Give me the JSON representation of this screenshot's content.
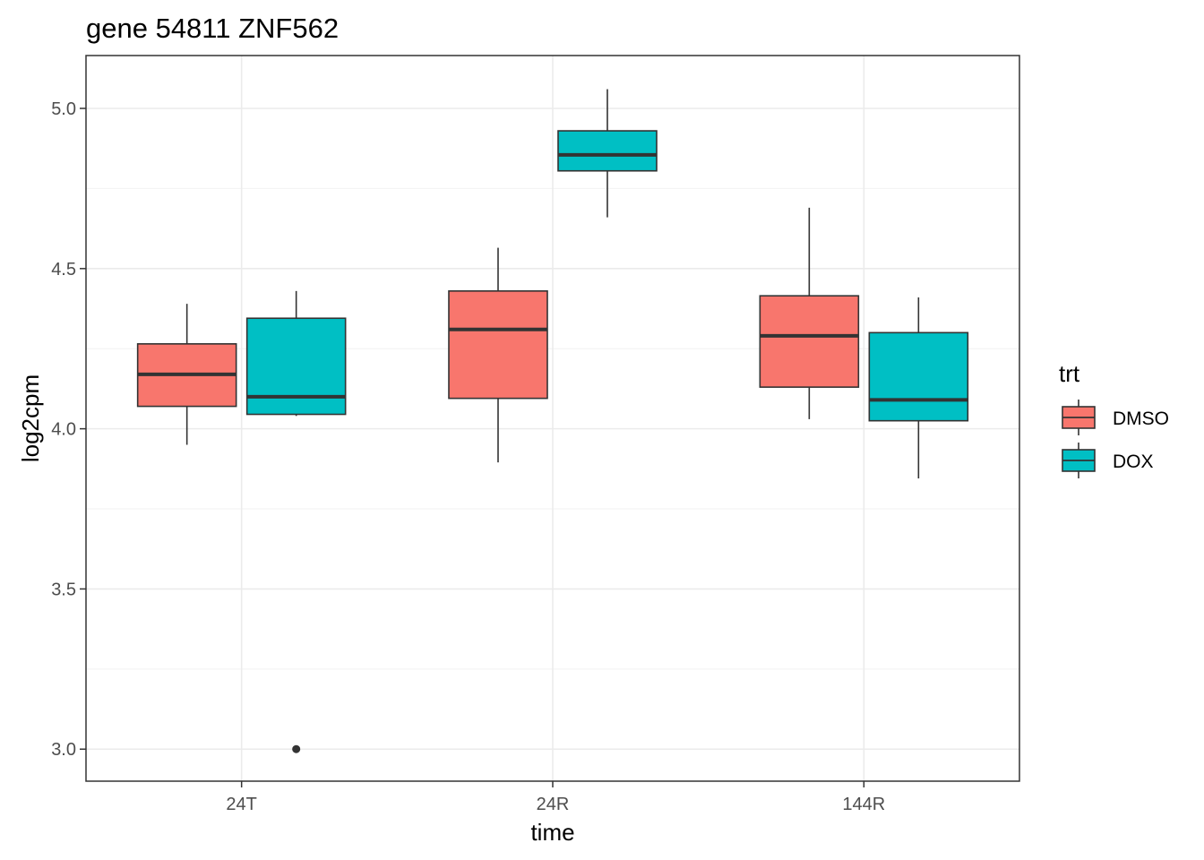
{
  "chart_data": {
    "type": "boxplot",
    "title": "gene 54811 ZNF562",
    "xlabel": "time",
    "ylabel": "log2cpm",
    "categories": [
      "24T",
      "24R",
      "144R"
    ],
    "yticks": [
      3.0,
      3.5,
      4.0,
      4.5,
      5.0
    ],
    "ytick_labels": [
      "3.0",
      "3.5",
      "4.0",
      "4.5",
      "5.0"
    ],
    "ylim": [
      2.9,
      5.165
    ],
    "grid": true,
    "legend": {
      "title": "trt",
      "placement": "right"
    },
    "series": [
      {
        "name": "DMSO",
        "color": "#F8766D",
        "boxes": [
          {
            "category": "24T",
            "min": 3.95,
            "q1": 4.07,
            "median": 4.17,
            "q3": 4.265,
            "max": 4.39,
            "outliers": []
          },
          {
            "category": "24R",
            "min": 3.895,
            "q1": 4.095,
            "median": 4.31,
            "q3": 4.43,
            "max": 4.565,
            "outliers": []
          },
          {
            "category": "144R",
            "min": 4.03,
            "q1": 4.13,
            "median": 4.29,
            "q3": 4.415,
            "max": 4.69,
            "outliers": []
          }
        ]
      },
      {
        "name": "DOX",
        "color": "#00BFC4",
        "boxes": [
          {
            "category": "24T",
            "min": 4.04,
            "q1": 4.045,
            "median": 4.1,
            "q3": 4.345,
            "max": 4.43,
            "outliers": [
              3.0
            ]
          },
          {
            "category": "24R",
            "min": 4.66,
            "q1": 4.805,
            "median": 4.855,
            "q3": 4.93,
            "max": 5.06,
            "outliers": []
          },
          {
            "category": "144R",
            "min": 3.845,
            "q1": 4.025,
            "median": 4.09,
            "q3": 4.3,
            "max": 4.41,
            "outliers": []
          }
        ]
      }
    ]
  }
}
